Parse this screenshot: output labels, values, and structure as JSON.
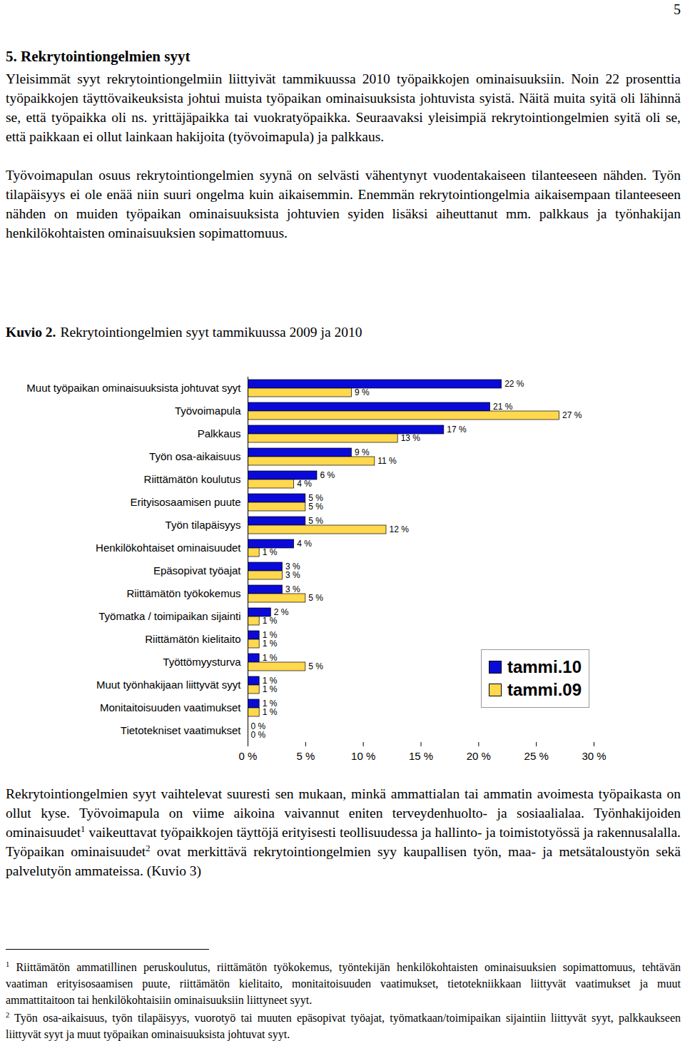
{
  "page_number": "5",
  "heading": "5. Rekrytointiongelmien syyt",
  "paragraphs_before": [
    [
      "Yleisimmät syyt rekrytointiongelmiin liittyivät tammikuussa 2010 työpaikkojen ominaisuuksiin. Noin 22 prosenttia työpaikkojen täyttövaikeuksista johtui muista työpaikan ominaisuuksista johtuvista syistä. Näitä muita syitä oli lähinnä se, että työpaikka oli ns. yrittäjäpaikka tai vuokratyöpaikka. Seuraavaksi yleisimpiä rekrytointiongelmien syitä oli se, että paikkaan ei ollut lainkaan hakijoita (työvoimapula) ja palkkaus."
    ],
    [
      "Työvoimapulan osuus rekrytointiongelmien syynä on selvästi vähentynyt vuodentakaiseen tilanteeseen nähden. Työn tilapäisyys ei ole enää niin suuri ongelma kuin aikaisemmin. Enemmän rekrytointiongelmia aikaisempaan tilanteeseen nähden on muiden työpaikan ominaisuuksista johtuvien syiden lisäksi aiheuttanut mm. palkkaus ja työnhakijan henkilökohtaisten ominaisuuksien sopimattomuus."
    ]
  ],
  "figure_caption": {
    "label": "Kuvio 2.",
    "text": "Rekrytointiongelmien syyt tammikuussa 2009 ja 2010"
  },
  "chart_data": {
    "type": "bar",
    "orientation": "horizontal",
    "categories": [
      "Muut työpaikan ominaisuuksista johtuvat syyt",
      "Työvoimapula",
      "Palkkaus",
      "Työn osa-aikaisuus",
      "Riittämätön koulutus",
      "Erityisosaamisen puute",
      "Työn tilapäisyys",
      "Henkilökohtaiset ominaisuudet",
      "Epäsopivat työajat",
      "Riittämätön työkokemus",
      "Työmatka / toimipaikan sijainti",
      "Riittämätön kielitaito",
      "Työttömyysturva",
      "Muut työnhakijaan liittyvät syyt",
      "Monitaitoisuuden vaatimukset",
      "Tietotekniset vaatimukset"
    ],
    "series": [
      {
        "name": "tammi.10",
        "color": "#0a0ad8",
        "values": [
          22,
          21,
          17,
          9,
          6,
          5,
          5,
          4,
          3,
          3,
          2,
          1,
          1,
          1,
          1,
          0
        ],
        "value_labels": [
          "22 %",
          "21 %",
          "17 %",
          "9 %",
          "6 %",
          "5 %",
          "5 %",
          "4 %",
          "3 %",
          "3 %",
          "2 %",
          "1 %",
          "1 %",
          "1 %",
          "1 %",
          "0 %"
        ]
      },
      {
        "name": "tammi.09",
        "color": "#ffd84d",
        "values": [
          9,
          27,
          13,
          11,
          4,
          5,
          12,
          1,
          3,
          5,
          1,
          1,
          5,
          1,
          1,
          0
        ],
        "value_labels": [
          "9 %",
          "27 %",
          "13 %",
          "11 %",
          "4 %",
          "5 %",
          "12 %",
          "1 %",
          "3 %",
          "5 %",
          "1 %",
          "1 %",
          "5 %",
          "1 %",
          "1 %",
          "0 %"
        ]
      }
    ],
    "xlim": [
      0,
      30
    ],
    "xticks": [
      {
        "value": 0,
        "label": "0 %"
      },
      {
        "value": 5,
        "label": "5 %"
      },
      {
        "value": 10,
        "label": "10 %"
      },
      {
        "value": 15,
        "label": "15 %"
      },
      {
        "value": 20,
        "label": "20 %"
      },
      {
        "value": 25,
        "label": "25 %"
      },
      {
        "value": 30,
        "label": "30 %"
      }
    ],
    "grid": false,
    "data_labels": true,
    "legend": "lower right"
  },
  "paragraphs_after": [
    [
      "Rekrytointiongelmien syyt vaihtelevat suuresti sen mukaan, minkä ammattialan tai ammatin avoimesta työpaikasta on ollut kyse. Työvoimapula on viime aikoina vaivannut eniten terveydenhuolto- ja sosiaalialaa. Työnhakijoiden ominaisuudet",
      {
        "sup": "1"
      },
      " vaikeuttavat työpaikkojen täyttöjä erityisesti teollisuudessa ja hallinto- ja toimistotyössä ja rakennusalalla. Työpaikan ominaisuudet",
      {
        "sup": "2"
      },
      " ovat merkittävä rekrytointiongelmien syy kaupallisen työn, maa- ja metsätaloustyön sekä palvelutyön ammateissa. (Kuvio 3)"
    ]
  ],
  "footnotes": [
    {
      "marker": "1",
      "text": "Riittämätön ammatillinen peruskoulutus, riittämätön työkokemus, työntekijän henkilökohtaisten ominaisuuksien sopimattomuus, tehtävän vaatiman erityisosaamisen puute, riittämätön kielitaito, monitaitoisuuden vaatimukset, tietotekniikkaan liittyvät vaatimukset ja muut ammattitaitoon tai henkilökohtaisiin ominaisuuksiin liittyneet syyt."
    },
    {
      "marker": "2",
      "text": "Työn osa-aikaisuus, työn tilapäisyys, vuorotyö tai muuten epäsopivat työajat, työmatkaan/toimipaikan sijaintiin liittyvät syyt, palkkaukseen liittyvät syyt ja muut työpaikan ominaisuuksista johtuvat syyt."
    }
  ]
}
